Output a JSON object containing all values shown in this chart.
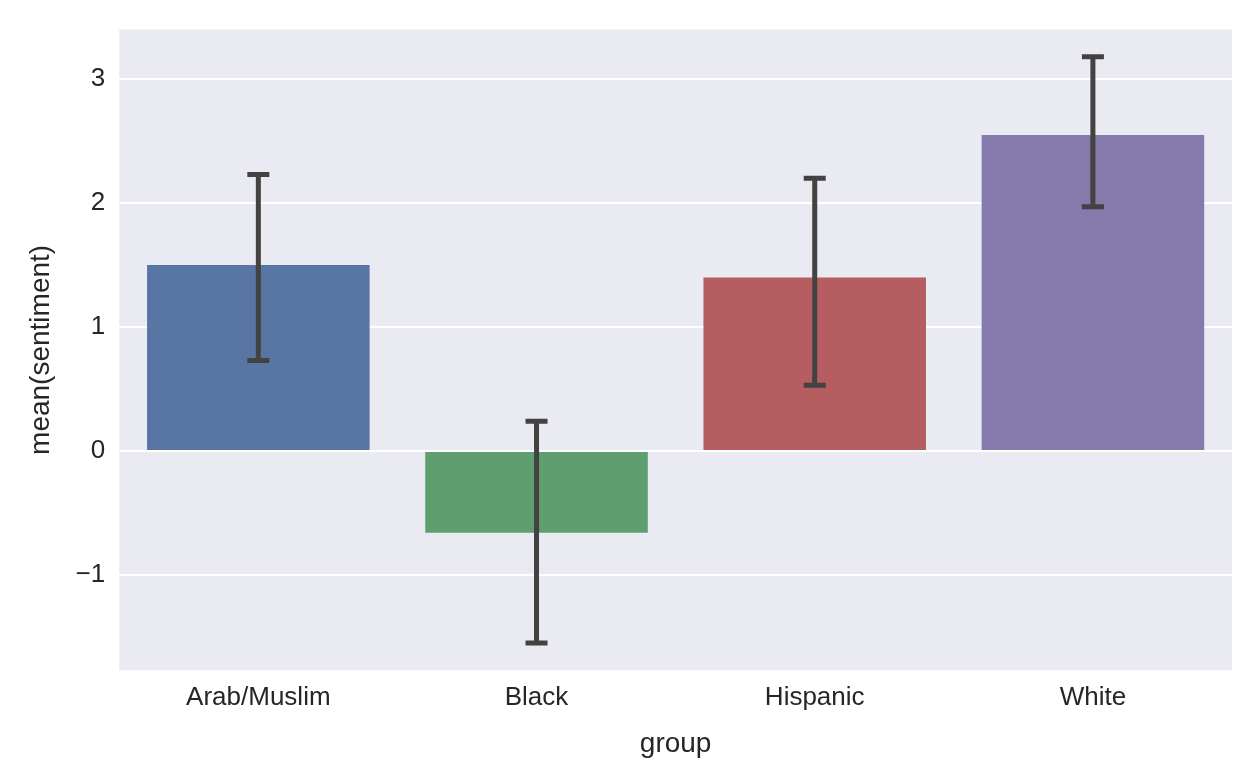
{
  "chart_data": {
    "type": "bar",
    "xlabel": "group",
    "ylabel": "mean(sentiment)",
    "categories": [
      "Arab/Muslim",
      "Black",
      "Hispanic",
      "White"
    ],
    "values": [
      1.5,
      -0.66,
      1.4,
      2.55
    ],
    "colors": [
      "#5875a4",
      "#5f9e6e",
      "#b55d60",
      "#857aab"
    ],
    "errors": [
      [
        0.73,
        2.23
      ],
      [
        -1.55,
        0.24
      ],
      [
        0.53,
        2.2
      ],
      [
        1.97,
        3.18
      ]
    ],
    "ylim": [
      -1.77,
      3.4
    ],
    "yticks": [
      -1,
      0,
      1,
      2,
      3
    ],
    "grid": "y",
    "legend": false
  }
}
